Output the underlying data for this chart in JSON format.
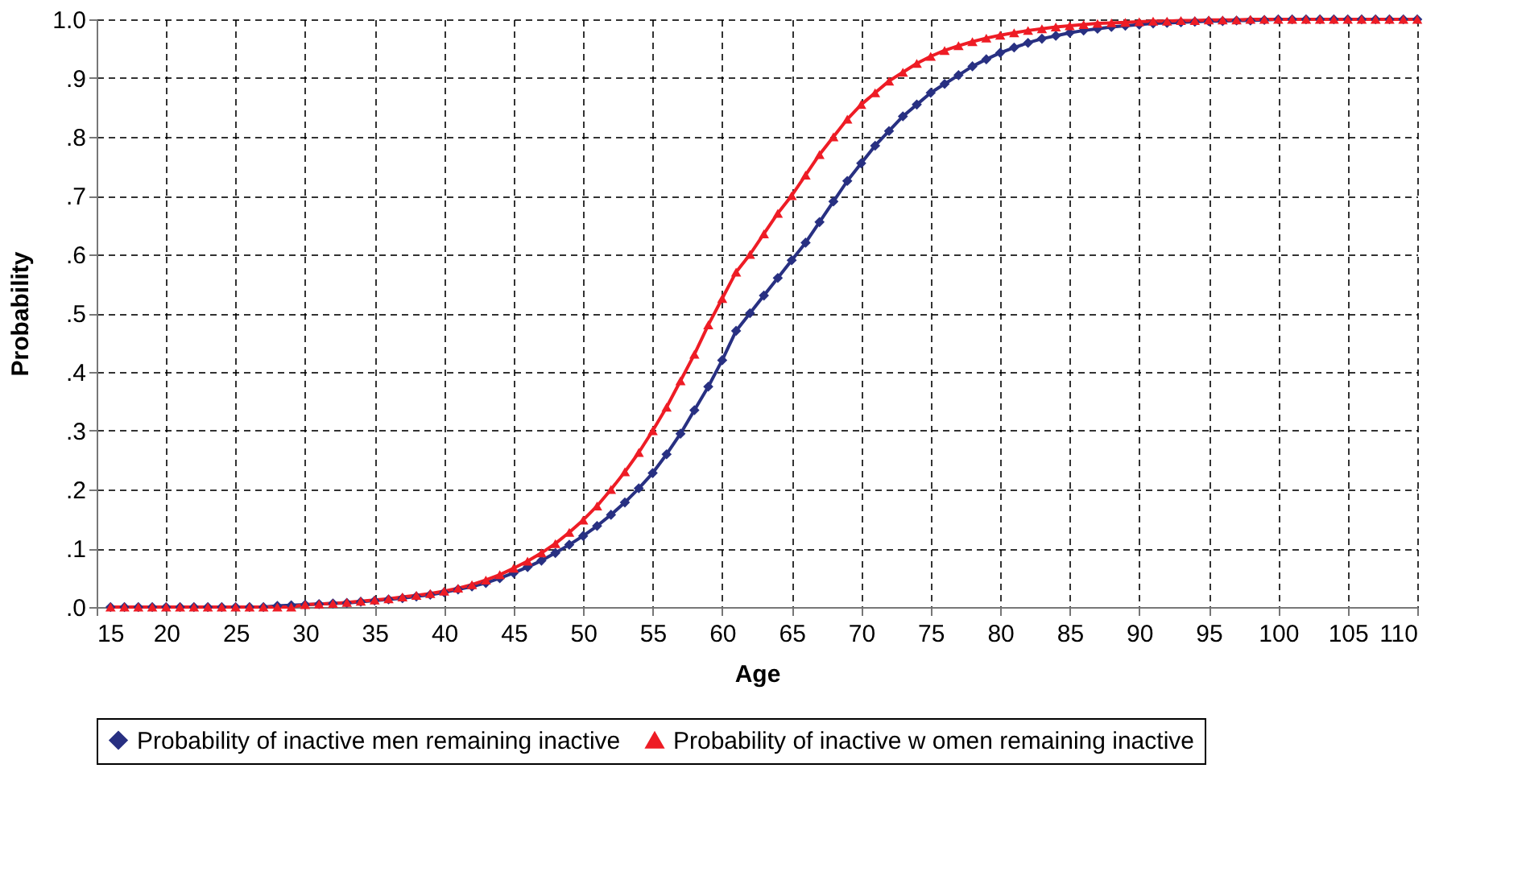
{
  "chart_data": {
    "type": "line",
    "xlabel": "Age",
    "ylabel": "Probability",
    "x": [
      16,
      17,
      18,
      19,
      20,
      21,
      22,
      23,
      24,
      25,
      26,
      27,
      28,
      29,
      30,
      31,
      32,
      33,
      34,
      35,
      36,
      37,
      38,
      39,
      40,
      41,
      42,
      43,
      44,
      45,
      46,
      47,
      48,
      49,
      50,
      51,
      52,
      53,
      54,
      55,
      56,
      57,
      58,
      59,
      60,
      61,
      62,
      63,
      64,
      65,
      66,
      67,
      68,
      69,
      70,
      71,
      72,
      73,
      74,
      75,
      76,
      77,
      78,
      79,
      80,
      81,
      82,
      83,
      84,
      85,
      86,
      87,
      88,
      89,
      90,
      91,
      92,
      93,
      94,
      95,
      96,
      97,
      98,
      99,
      100,
      101,
      102,
      103,
      104,
      105,
      106,
      107,
      108,
      109,
      110
    ],
    "series": [
      {
        "name": "Probability of inactive men remaining inactive",
        "color": "#283082",
        "marker": "diamond",
        "values": [
          0,
          0,
          0,
          0,
          0,
          0,
          0,
          0,
          0,
          0,
          0,
          0,
          0.002,
          0.003,
          0.004,
          0.005,
          0.006,
          0.007,
          0.009,
          0.011,
          0.013,
          0.015,
          0.018,
          0.021,
          0.025,
          0.03,
          0.035,
          0.041,
          0.049,
          0.058,
          0.068,
          0.079,
          0.092,
          0.106,
          0.121,
          0.138,
          0.157,
          0.178,
          0.202,
          0.228,
          0.26,
          0.295,
          0.335,
          0.375,
          0.42,
          0.47,
          0.5,
          0.53,
          0.56,
          0.59,
          0.62,
          0.655,
          0.69,
          0.725,
          0.755,
          0.785,
          0.81,
          0.835,
          0.855,
          0.875,
          0.89,
          0.905,
          0.92,
          0.932,
          0.943,
          0.952,
          0.96,
          0.967,
          0.972,
          0.977,
          0.981,
          0.984,
          0.987,
          0.989,
          0.991,
          0.993,
          0.994,
          0.995,
          0.996,
          0.997,
          0.997,
          0.998,
          0.998,
          0.999,
          1,
          1,
          1,
          1,
          1,
          1,
          1,
          1,
          1,
          1,
          1
        ]
      },
      {
        "name": "Probability of inactive w omen remaining inactive",
        "color": "#ee1c25",
        "marker": "triangle",
        "values": [
          0,
          0,
          0,
          0,
          0,
          0,
          0,
          0,
          0,
          0,
          0,
          0,
          0,
          0,
          0.004,
          0.005,
          0.006,
          0.008,
          0.01,
          0.012,
          0.014,
          0.017,
          0.02,
          0.023,
          0.027,
          0.032,
          0.038,
          0.046,
          0.055,
          0.066,
          0.078,
          0.092,
          0.108,
          0.127,
          0.148,
          0.172,
          0.2,
          0.23,
          0.263,
          0.3,
          0.34,
          0.385,
          0.43,
          0.48,
          0.525,
          0.57,
          0.6,
          0.635,
          0.67,
          0.7,
          0.735,
          0.77,
          0.8,
          0.83,
          0.855,
          0.875,
          0.895,
          0.91,
          0.925,
          0.937,
          0.947,
          0.955,
          0.962,
          0.968,
          0.973,
          0.977,
          0.981,
          0.984,
          0.987,
          0.989,
          0.991,
          0.993,
          0.994,
          0.995,
          0.996,
          0.997,
          0.997,
          0.998,
          0.998,
          0.999,
          0.999,
          0.999,
          1,
          1,
          1,
          1,
          1,
          1,
          1,
          1,
          1,
          1,
          1,
          1,
          1
        ]
      }
    ],
    "xlim": [
      15,
      110
    ],
    "xticks": [
      15,
      20,
      25,
      30,
      35,
      40,
      45,
      50,
      55,
      60,
      65,
      70,
      75,
      80,
      85,
      90,
      95,
      100,
      105,
      110
    ],
    "ylim": [
      0,
      1
    ],
    "yticks": [
      {
        "value": 0,
        "label": ".0"
      },
      {
        "value": 0.1,
        "label": ".1"
      },
      {
        "value": 0.2,
        "label": ".2"
      },
      {
        "value": 0.3,
        "label": ".3"
      },
      {
        "value": 0.4,
        "label": ".4"
      },
      {
        "value": 0.5,
        "label": ".5"
      },
      {
        "value": 0.6,
        "label": ".6"
      },
      {
        "value": 0.7,
        "label": ".7"
      },
      {
        "value": 0.8,
        "label": ".8"
      },
      {
        "value": 0.9,
        "label": ".9"
      },
      {
        "value": 1,
        "label": "1.0"
      }
    ],
    "grid": true,
    "legend": "bottom",
    "line_style": "solid"
  }
}
